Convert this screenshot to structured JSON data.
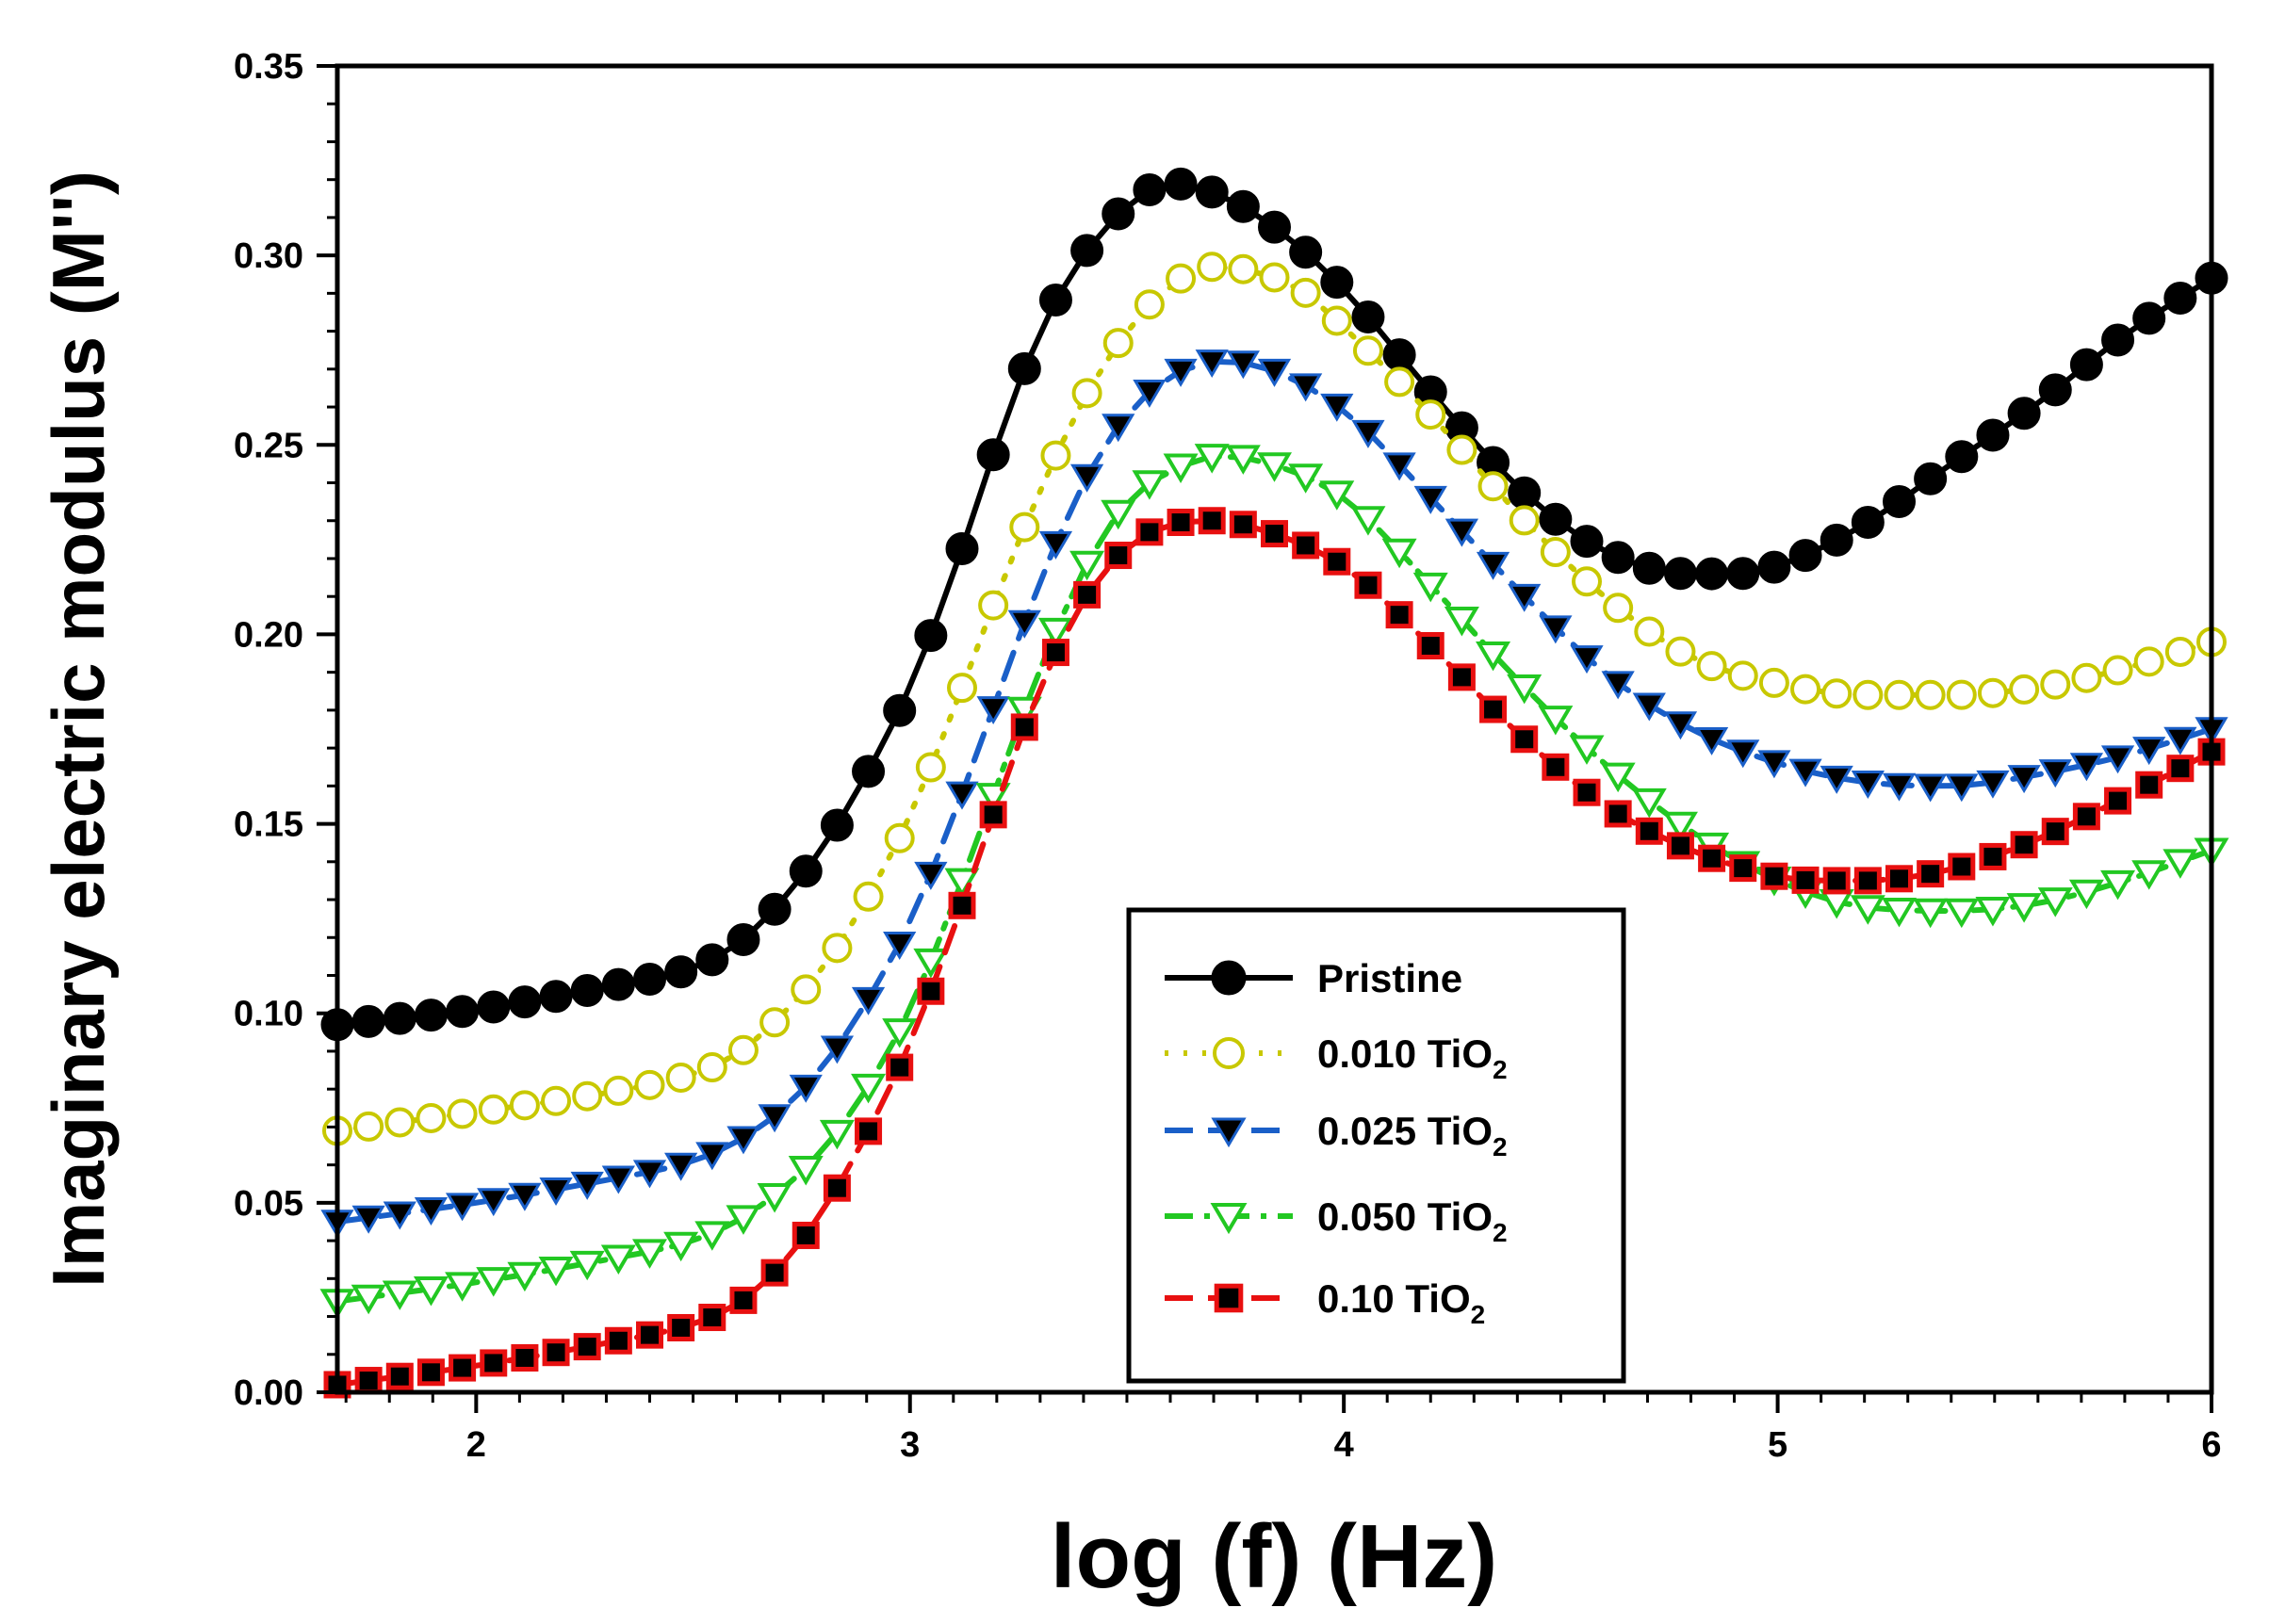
{
  "chart_data": {
    "type": "line",
    "title": "",
    "xlabel": "log (f) (Hz)",
    "ylabel": "Imaginary electric modulus (M'')",
    "xlim": [
      1.68,
      6.0
    ],
    "ylim": [
      0.0,
      0.35
    ],
    "xticks": [
      2,
      3,
      4,
      5,
      6
    ],
    "xtick_labels": [
      "2",
      "3",
      "4",
      "5",
      "6"
    ],
    "yticks": [
      0.0,
      0.05,
      0.1,
      0.15,
      0.2,
      0.25,
      0.3,
      0.35
    ],
    "ytick_labels": [
      "0.00",
      "0.05",
      "0.10",
      "0.15",
      "0.20",
      "0.25",
      "0.30",
      "0.35"
    ],
    "grid": false,
    "legend_position": "bottom-center",
    "series": [
      {
        "name": "Pristine",
        "label_main": "Pristine",
        "label_sub": "",
        "color": "#000000",
        "marker": "filled-circle",
        "line_style": "solid",
        "x": [
          1.68,
          2.0,
          2.3,
          2.5,
          2.6,
          2.7,
          2.8,
          2.9,
          3.0,
          3.1,
          3.2,
          3.3,
          3.4,
          3.5,
          3.6,
          3.75,
          3.9,
          4.0,
          4.2,
          4.4,
          4.6,
          4.8,
          4.9,
          5.0,
          5.2,
          5.4,
          5.6,
          5.8,
          6.0
        ],
        "y": [
          0.097,
          0.101,
          0.107,
          0.112,
          0.118,
          0.129,
          0.144,
          0.163,
          0.186,
          0.216,
          0.25,
          0.28,
          0.3,
          0.313,
          0.319,
          0.314,
          0.302,
          0.291,
          0.264,
          0.239,
          0.222,
          0.216,
          0.216,
          0.218,
          0.229,
          0.245,
          0.261,
          0.279,
          0.294
        ]
      },
      {
        "name": "0.010 TiO2",
        "label_main": "0.010 TiO",
        "label_sub": "2",
        "color": "#c8c800",
        "marker": "open-circle",
        "line_style": "dotted",
        "x": [
          1.68,
          2.0,
          2.3,
          2.5,
          2.6,
          2.7,
          2.8,
          2.9,
          3.0,
          3.1,
          3.2,
          3.3,
          3.4,
          3.5,
          3.6,
          3.7,
          3.9,
          4.0,
          4.2,
          4.4,
          4.6,
          4.8,
          5.0,
          5.2,
          5.4,
          5.6,
          5.8,
          6.0
        ],
        "y": [
          0.069,
          0.074,
          0.079,
          0.084,
          0.089,
          0.099,
          0.112,
          0.13,
          0.152,
          0.18,
          0.21,
          0.238,
          0.262,
          0.28,
          0.292,
          0.297,
          0.291,
          0.281,
          0.258,
          0.232,
          0.21,
          0.194,
          0.187,
          0.184,
          0.184,
          0.186,
          0.191,
          0.198
        ]
      },
      {
        "name": "0.025 TiO2",
        "label_main": "0.025 TiO",
        "label_sub": "2",
        "color": "#1a5fc8",
        "marker": "filled-triangle-down",
        "line_style": "dashed",
        "x": [
          1.68,
          2.0,
          2.3,
          2.5,
          2.6,
          2.7,
          2.8,
          2.9,
          3.0,
          3.1,
          3.2,
          3.3,
          3.4,
          3.5,
          3.6,
          3.7,
          3.8,
          4.0,
          4.2,
          4.4,
          4.6,
          4.8,
          5.0,
          5.2,
          5.4,
          5.6,
          5.8,
          6.0
        ],
        "y": [
          0.045,
          0.05,
          0.056,
          0.061,
          0.066,
          0.074,
          0.086,
          0.103,
          0.124,
          0.152,
          0.183,
          0.214,
          0.24,
          0.258,
          0.268,
          0.272,
          0.271,
          0.259,
          0.236,
          0.212,
          0.19,
          0.175,
          0.166,
          0.161,
          0.16,
          0.163,
          0.168,
          0.175
        ]
      },
      {
        "name": "0.050 TiO2",
        "label_main": "0.050 TiO",
        "label_sub": "2",
        "color": "#22c822",
        "marker": "open-triangle-down",
        "line_style": "dash-dot",
        "x": [
          1.68,
          2.0,
          2.3,
          2.5,
          2.6,
          2.7,
          2.8,
          2.9,
          3.0,
          3.1,
          3.2,
          3.3,
          3.4,
          3.5,
          3.6,
          3.7,
          3.8,
          4.0,
          4.2,
          4.4,
          4.6,
          4.8,
          5.0,
          5.2,
          5.4,
          5.6,
          5.8,
          6.0
        ],
        "y": [
          0.024,
          0.029,
          0.035,
          0.04,
          0.045,
          0.053,
          0.064,
          0.08,
          0.101,
          0.129,
          0.16,
          0.191,
          0.217,
          0.235,
          0.243,
          0.247,
          0.246,
          0.236,
          0.213,
          0.188,
          0.166,
          0.148,
          0.135,
          0.128,
          0.127,
          0.129,
          0.135,
          0.143
        ]
      },
      {
        "name": "0.10 TiO2",
        "label_main": "0.10 TiO",
        "label_sub": "2",
        "color": "#e81010",
        "marker": "filled-square",
        "line_style": "dashed",
        "x": [
          1.68,
          2.0,
          2.3,
          2.5,
          2.6,
          2.7,
          2.8,
          2.9,
          3.0,
          3.1,
          3.2,
          3.3,
          3.4,
          3.5,
          3.6,
          3.7,
          3.8,
          4.0,
          4.2,
          4.4,
          4.6,
          4.8,
          4.9,
          5.0,
          5.1,
          5.2,
          5.4,
          5.6,
          5.8,
          6.0
        ],
        "y": [
          0.002,
          0.007,
          0.013,
          0.018,
          0.023,
          0.033,
          0.048,
          0.068,
          0.092,
          0.122,
          0.155,
          0.186,
          0.209,
          0.223,
          0.229,
          0.23,
          0.228,
          0.218,
          0.197,
          0.174,
          0.155,
          0.143,
          0.139,
          0.136,
          0.135,
          0.135,
          0.138,
          0.146,
          0.157,
          0.169
        ]
      }
    ]
  }
}
